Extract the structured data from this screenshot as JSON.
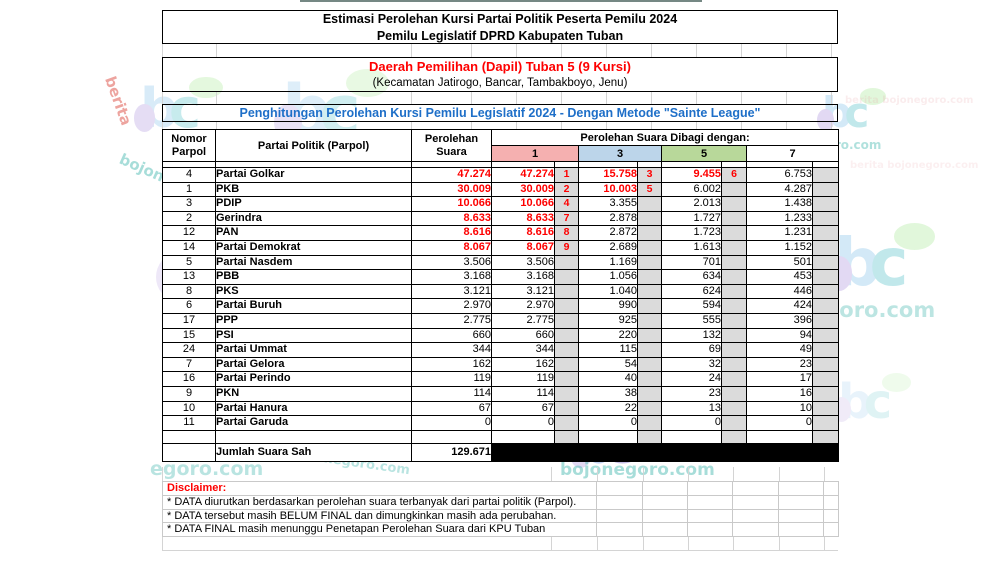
{
  "page": {
    "title1": "Estimasi Perolehan Kursi Partai Politik Peserta Pemilu 2024",
    "title2": "Pemilu Legislatif DPRD Kabupaten Tuban",
    "dapil_title": "Daerah Pemilihan (Dapil) Tuban 5 (9 Kursi)",
    "dapil_sub": "(Kecamatan Jatirogo, Bancar, Tambakboyo, Jenu)",
    "method_title": "Penghitungan Perolehan Kursi Pemilu Legislatif 2024 - Dengan Metode \"Sainte League\""
  },
  "table": {
    "headers": {
      "nomor_l1": "Nomor",
      "nomor_l2": "Parpol",
      "party": "Partai Politik (Parpol)",
      "votes_l1": "Perolehan",
      "votes_l2": "Suara",
      "group": "Perolehan Suara Dibagi dengan:"
    },
    "divisors": [
      "1",
      "3",
      "5",
      "7"
    ],
    "rows": [
      {
        "n": "4",
        "p": "Partai Golkar",
        "v": "47.274",
        "vr": true,
        "d": [
          [
            "47.274",
            true,
            "1"
          ],
          [
            "15.758",
            true,
            "3"
          ],
          [
            "9.455",
            true,
            "6"
          ],
          [
            "6.753",
            false,
            ""
          ]
        ]
      },
      {
        "n": "1",
        "p": "PKB",
        "v": "30.009",
        "vr": true,
        "d": [
          [
            "30.009",
            true,
            "2"
          ],
          [
            "10.003",
            true,
            "5"
          ],
          [
            "6.002",
            false,
            ""
          ],
          [
            "4.287",
            false,
            ""
          ]
        ]
      },
      {
        "n": "3",
        "p": "PDIP",
        "v": "10.066",
        "vr": true,
        "d": [
          [
            "10.066",
            true,
            "4"
          ],
          [
            "3.355",
            false,
            ""
          ],
          [
            "2.013",
            false,
            ""
          ],
          [
            "1.438",
            false,
            ""
          ]
        ]
      },
      {
        "n": "2",
        "p": "Gerindra",
        "v": "8.633",
        "vr": true,
        "d": [
          [
            "8.633",
            true,
            "7"
          ],
          [
            "2.878",
            false,
            ""
          ],
          [
            "1.727",
            false,
            ""
          ],
          [
            "1.233",
            false,
            ""
          ]
        ]
      },
      {
        "n": "12",
        "p": "PAN",
        "v": "8.616",
        "vr": true,
        "d": [
          [
            "8.616",
            true,
            "8"
          ],
          [
            "2.872",
            false,
            ""
          ],
          [
            "1.723",
            false,
            ""
          ],
          [
            "1.231",
            false,
            ""
          ]
        ]
      },
      {
        "n": "14",
        "p": "Partai Demokrat",
        "v": "8.067",
        "vr": true,
        "d": [
          [
            "8.067",
            true,
            "9"
          ],
          [
            "2.689",
            false,
            ""
          ],
          [
            "1.613",
            false,
            ""
          ],
          [
            "1.152",
            false,
            ""
          ]
        ]
      },
      {
        "n": "5",
        "p": "Partai Nasdem",
        "v": "3.506",
        "vr": false,
        "d": [
          [
            "3.506",
            false,
            ""
          ],
          [
            "1.169",
            false,
            ""
          ],
          [
            "701",
            false,
            ""
          ],
          [
            "501",
            false,
            ""
          ]
        ]
      },
      {
        "n": "13",
        "p": "PBB",
        "v": "3.168",
        "vr": false,
        "d": [
          [
            "3.168",
            false,
            ""
          ],
          [
            "1.056",
            false,
            ""
          ],
          [
            "634",
            false,
            ""
          ],
          [
            "453",
            false,
            ""
          ]
        ]
      },
      {
        "n": "8",
        "p": "PKS",
        "v": "3.121",
        "vr": false,
        "d": [
          [
            "3.121",
            false,
            ""
          ],
          [
            "1.040",
            false,
            ""
          ],
          [
            "624",
            false,
            ""
          ],
          [
            "446",
            false,
            ""
          ]
        ]
      },
      {
        "n": "6",
        "p": "Partai Buruh",
        "v": "2.970",
        "vr": false,
        "d": [
          [
            "2.970",
            false,
            ""
          ],
          [
            "990",
            false,
            ""
          ],
          [
            "594",
            false,
            ""
          ],
          [
            "424",
            false,
            ""
          ]
        ]
      },
      {
        "n": "17",
        "p": "PPP",
        "v": "2.775",
        "vr": false,
        "d": [
          [
            "2.775",
            false,
            ""
          ],
          [
            "925",
            false,
            ""
          ],
          [
            "555",
            false,
            ""
          ],
          [
            "396",
            false,
            ""
          ]
        ]
      },
      {
        "n": "15",
        "p": "PSI",
        "v": "660",
        "vr": false,
        "d": [
          [
            "660",
            false,
            ""
          ],
          [
            "220",
            false,
            ""
          ],
          [
            "132",
            false,
            ""
          ],
          [
            "94",
            false,
            ""
          ]
        ]
      },
      {
        "n": "24",
        "p": "Partai Ummat",
        "v": "344",
        "vr": false,
        "d": [
          [
            "344",
            false,
            ""
          ],
          [
            "115",
            false,
            ""
          ],
          [
            "69",
            false,
            ""
          ],
          [
            "49",
            false,
            ""
          ]
        ]
      },
      {
        "n": "7",
        "p": "Partai Gelora",
        "v": "162",
        "vr": false,
        "d": [
          [
            "162",
            false,
            ""
          ],
          [
            "54",
            false,
            ""
          ],
          [
            "32",
            false,
            ""
          ],
          [
            "23",
            false,
            ""
          ]
        ]
      },
      {
        "n": "16",
        "p": "Partai Perindo",
        "v": "119",
        "vr": false,
        "d": [
          [
            "119",
            false,
            ""
          ],
          [
            "40",
            false,
            ""
          ],
          [
            "24",
            false,
            ""
          ],
          [
            "17",
            false,
            ""
          ]
        ]
      },
      {
        "n": "9",
        "p": "PKN",
        "v": "114",
        "vr": false,
        "d": [
          [
            "114",
            false,
            ""
          ],
          [
            "38",
            false,
            ""
          ],
          [
            "23",
            false,
            ""
          ],
          [
            "16",
            false,
            ""
          ]
        ]
      },
      {
        "n": "10",
        "p": "Partai Hanura",
        "v": "67",
        "vr": false,
        "d": [
          [
            "67",
            false,
            ""
          ],
          [
            "22",
            false,
            ""
          ],
          [
            "13",
            false,
            ""
          ],
          [
            "10",
            false,
            ""
          ]
        ]
      },
      {
        "n": "11",
        "p": "Partai Garuda",
        "v": "0",
        "vr": false,
        "d": [
          [
            "0",
            false,
            ""
          ],
          [
            "0",
            false,
            ""
          ],
          [
            "0",
            false,
            ""
          ],
          [
            "0",
            false,
            ""
          ]
        ]
      }
    ],
    "total_label": "Jumlah Suara Sah",
    "total_value": "129.671"
  },
  "disclaimer": {
    "title": "Disclaimer:",
    "lines": [
      "* DATA diurutkan berdasarkan perolehan suara terbanyak dari partai politik (Parpol).",
      "* DATA tersebut masih BELUM FINAL dan dimungkinkan masih ada perubahan.",
      "* DATA FINAL masih menunggu Penetapan Perolehan Suara dari KPU Tuban"
    ]
  },
  "watermark": {
    "brand_letters": "bc",
    "berita_text": "berita",
    "site_text": "bojonegoro.com",
    "full": "berita bojonegoro.com",
    "partial_1": "onegoro.com",
    "partial_2": "egoro.com",
    "partial_3": "goro.com"
  },
  "colors": {
    "red": "#FE0000",
    "blue": "#1E6FC8",
    "pink": "#F5B0B0",
    "lblue": "#BCD5EA",
    "lgreen": "#B8D89A",
    "gray": "#DBDBDB"
  }
}
